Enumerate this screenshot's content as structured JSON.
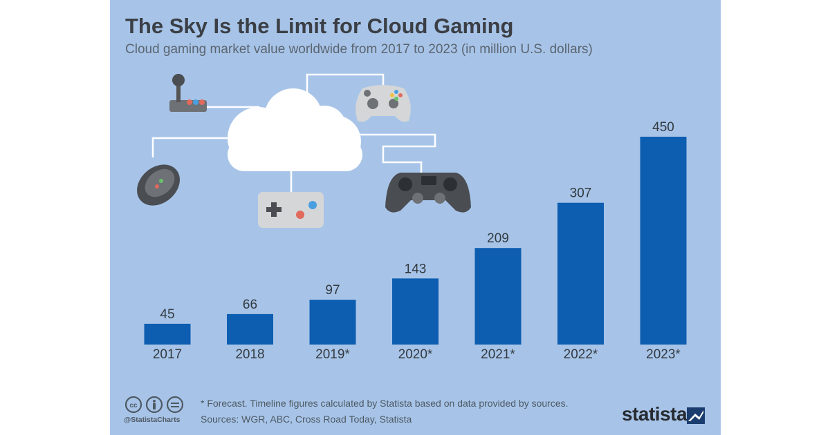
{
  "title": "The Sky Is the Limit for Cloud Gaming",
  "subtitle": "Cloud gaming market value worldwide from 2017 to 2023 (in million U.S. dollars)",
  "footnote": "* Forecast. Timeline figures calculated by Statista based on data provided by sources.",
  "sources": "Sources: WGR, ABC, Cross Road Today, Statista",
  "handle": "@StatistaCharts",
  "brand": "statista",
  "colors": {
    "background": "#a7c4e8",
    "bar": "#0d5db0",
    "text": "#3b3f45"
  },
  "chart_data": {
    "type": "bar",
    "title": "The Sky Is the Limit for Cloud Gaming",
    "xlabel": "",
    "ylabel": "",
    "ylim": [
      0,
      450
    ],
    "grid": false,
    "categories": [
      "2017",
      "2018",
      "2019*",
      "2020*",
      "2021*",
      "2022*",
      "2023*"
    ],
    "values": [
      45,
      66,
      97,
      143,
      209,
      307,
      450
    ]
  }
}
